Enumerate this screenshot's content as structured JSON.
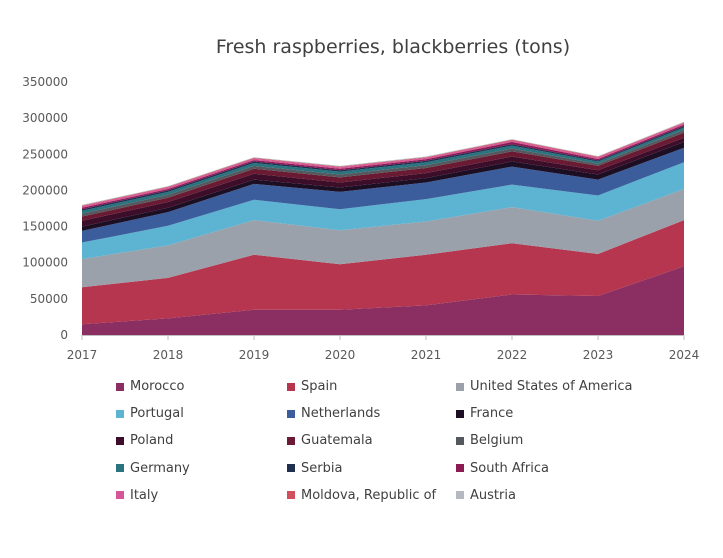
{
  "chart_data": {
    "type": "area",
    "stacked": true,
    "title": "Fresh raspberries, blackberries (tons)",
    "x": [
      "2017",
      "2018",
      "2019",
      "2020",
      "2021",
      "2022",
      "2023",
      "2024"
    ],
    "ylim": [
      0,
      350000
    ],
    "yticks": [
      "0",
      "50000",
      "100000",
      "150000",
      "200000",
      "250000",
      "300000",
      "350000"
    ],
    "grid": false,
    "legend": "bottom",
    "series": [
      {
        "name": "Morocco",
        "color": "#8b2f62",
        "values": [
          15000,
          23000,
          35000,
          35000,
          41000,
          56000,
          54000,
          95000
        ]
      },
      {
        "name": "Spain",
        "color": "#b5364e",
        "values": [
          51000,
          56000,
          76000,
          63000,
          70000,
          71000,
          58000,
          64000
        ]
      },
      {
        "name": "United States of America",
        "color": "#9aa1ab",
        "values": [
          39000,
          45000,
          48000,
          47000,
          46000,
          50000,
          46000,
          43000
        ]
      },
      {
        "name": "Portugal",
        "color": "#5db3d2",
        "values": [
          23000,
          27000,
          28000,
          29000,
          31000,
          31000,
          35000,
          37000
        ]
      },
      {
        "name": "Netherlands",
        "color": "#3c5d9b",
        "values": [
          16000,
          19000,
          22000,
          24000,
          23000,
          25000,
          22000,
          20000
        ]
      },
      {
        "name": "France",
        "color": "#1c0f24",
        "values": [
          6000,
          6000,
          6000,
          6000,
          6000,
          7000,
          7000,
          8000
        ]
      },
      {
        "name": "Poland",
        "color": "#3d0e2a",
        "values": [
          8000,
          8000,
          8000,
          7000,
          7000,
          7000,
          6000,
          6000
        ]
      },
      {
        "name": "Guatemala",
        "color": "#6a1a33",
        "values": [
          6000,
          6000,
          7000,
          7000,
          7000,
          7000,
          6000,
          7000
        ]
      },
      {
        "name": "Belgium",
        "color": "#55585c",
        "values": [
          4000,
          4000,
          4000,
          4000,
          4000,
          4000,
          3000,
          4000
        ]
      },
      {
        "name": "Germany",
        "color": "#2a7480",
        "values": [
          4000,
          4000,
          4000,
          4000,
          4000,
          4000,
          3000,
          3000
        ]
      },
      {
        "name": "Serbia",
        "color": "#1e2f4f",
        "values": [
          2000,
          2000,
          2000,
          2000,
          2000,
          2000,
          1500,
          2000
        ]
      },
      {
        "name": "South Africa",
        "color": "#8c1a53",
        "values": [
          2000,
          2000,
          2000,
          2000,
          2000,
          3000,
          2000,
          2000
        ]
      },
      {
        "name": "Italy",
        "color": "#d6569a",
        "values": [
          2000,
          2000,
          2000,
          2000,
          2000,
          2000,
          2000,
          2000
        ]
      },
      {
        "name": "Moldova, Republic of",
        "color": "#d2505e",
        "values": [
          1000,
          1000,
          1000,
          1000,
          1000,
          1000,
          1000,
          1000
        ]
      },
      {
        "name": "Austria",
        "color": "#b6b9bf",
        "values": [
          1000,
          1000,
          1000,
          1000,
          1000,
          1000,
          1000,
          1000
        ]
      }
    ]
  }
}
